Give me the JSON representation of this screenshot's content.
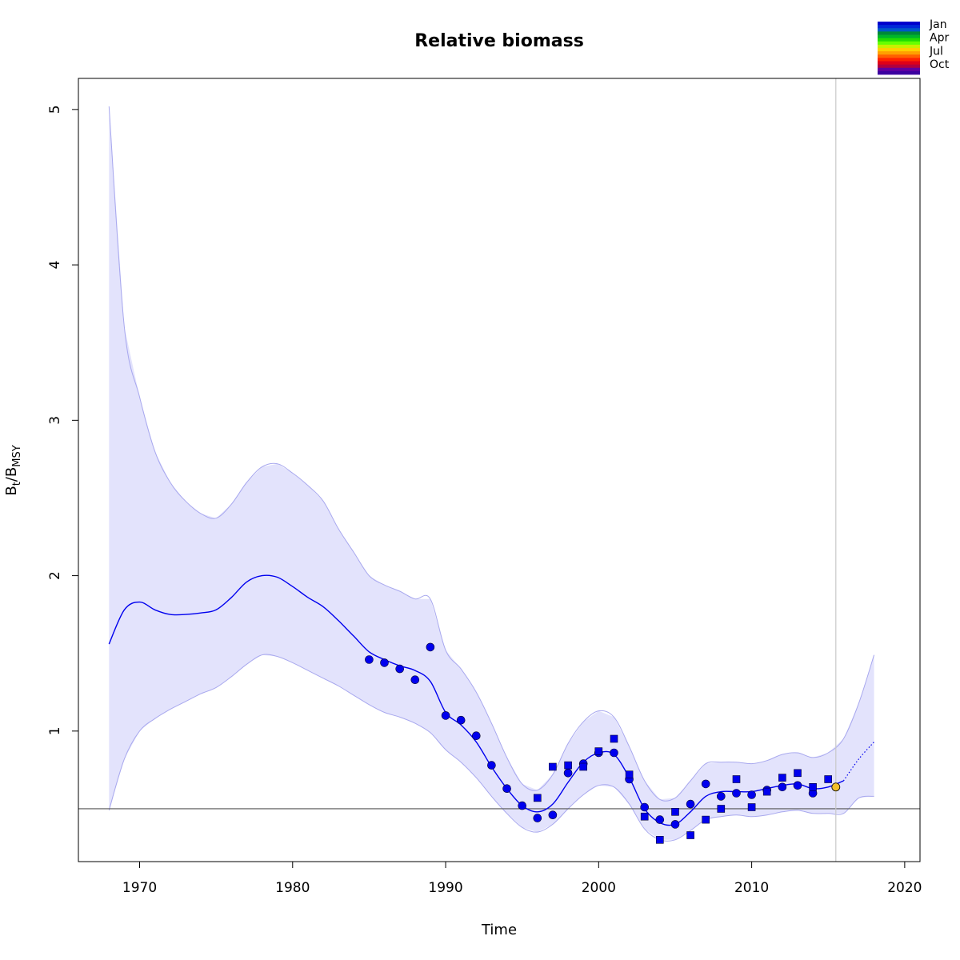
{
  "chart_data": {
    "type": "line",
    "title": "Relative biomass",
    "xlabel": "Time",
    "ylabel_main": "B",
    "ylabel_sub1": "t",
    "ylabel_sep": "/B",
    "ylabel_sub2": "MSY",
    "xlim": [
      1966,
      2021
    ],
    "ylim": [
      0.16,
      5.2
    ],
    "xticks": [
      1970,
      1980,
      1990,
      2000,
      2010,
      2020
    ],
    "yticks": [
      1,
      2,
      3,
      4,
      5
    ],
    "reference_line": 0.5,
    "vertical_line": 2015.5,
    "grid": false,
    "colors": {
      "estimate": "#0000ee",
      "band": "#e3e3fc",
      "band_edge": "#a8a8ee",
      "points": "#0000ee",
      "current": "#f2c02a"
    },
    "estimate": {
      "name": "",
      "x": [
        1968,
        1969,
        1970,
        1971,
        1972,
        1973,
        1974,
        1975,
        1976,
        1977,
        1978,
        1979,
        1980,
        1981,
        1982,
        1983,
        1984,
        1985,
        1986,
        1987,
        1988,
        1989,
        1990,
        1991,
        1992,
        1993,
        1994,
        1995,
        1996,
        1997,
        1998,
        1999,
        2000,
        2001,
        2002,
        2003,
        2004,
        2005,
        2006,
        2007,
        2008,
        2009,
        2010,
        2011,
        2012,
        2013,
        2014,
        2015,
        2016
      ],
      "y": [
        1.56,
        1.78,
        1.83,
        1.78,
        1.75,
        1.75,
        1.76,
        1.78,
        1.86,
        1.96,
        2.0,
        1.99,
        1.93,
        1.86,
        1.8,
        1.71,
        1.61,
        1.51,
        1.46,
        1.42,
        1.39,
        1.32,
        1.12,
        1.04,
        0.93,
        0.77,
        0.63,
        0.52,
        0.48,
        0.53,
        0.67,
        0.8,
        0.86,
        0.85,
        0.7,
        0.5,
        0.41,
        0.4,
        0.48,
        0.58,
        0.61,
        0.61,
        0.61,
        0.63,
        0.65,
        0.66,
        0.63,
        0.64,
        0.68
      ]
    },
    "prediction": {
      "x": [
        2016,
        2017,
        2018
      ],
      "y": [
        0.68,
        0.82,
        0.93
      ]
    },
    "ci_upper": {
      "x": [
        1968,
        1969,
        1970,
        1971,
        1972,
        1973,
        1974,
        1975,
        1976,
        1977,
        1978,
        1979,
        1980,
        1981,
        1982,
        1983,
        1984,
        1985,
        1986,
        1987,
        1988,
        1989,
        1990,
        1991,
        1992,
        1993,
        1994,
        1995,
        1996,
        1997,
        1998,
        1999,
        2000,
        2001,
        2002,
        2003,
        2004,
        2005,
        2006,
        2007,
        2008,
        2009,
        2010,
        2011,
        2012,
        2013,
        2014,
        2015,
        2016,
        2017,
        2018
      ],
      "y": [
        5.02,
        3.6,
        3.15,
        2.8,
        2.6,
        2.48,
        2.4,
        2.37,
        2.46,
        2.6,
        2.7,
        2.72,
        2.66,
        2.58,
        2.48,
        2.3,
        2.15,
        2.0,
        1.94,
        1.9,
        1.85,
        1.85,
        1.52,
        1.4,
        1.25,
        1.05,
        0.83,
        0.66,
        0.62,
        0.72,
        0.92,
        1.06,
        1.13,
        1.09,
        0.9,
        0.68,
        0.56,
        0.57,
        0.68,
        0.79,
        0.8,
        0.8,
        0.79,
        0.81,
        0.85,
        0.86,
        0.83,
        0.86,
        0.95,
        1.18,
        1.49
      ]
    },
    "ci_lower": {
      "x": [
        1968,
        1969,
        1970,
        1971,
        1972,
        1973,
        1974,
        1975,
        1976,
        1977,
        1978,
        1979,
        1980,
        1981,
        1982,
        1983,
        1984,
        1985,
        1986,
        1987,
        1988,
        1989,
        1990,
        1991,
        1992,
        1993,
        1994,
        1995,
        1996,
        1997,
        1998,
        1999,
        2000,
        2001,
        2002,
        2003,
        2004,
        2005,
        2006,
        2007,
        2008,
        2009,
        2010,
        2011,
        2012,
        2013,
        2014,
        2015,
        2016,
        2017,
        2018
      ],
      "y": [
        0.49,
        0.82,
        1.0,
        1.08,
        1.14,
        1.19,
        1.24,
        1.28,
        1.35,
        1.43,
        1.49,
        1.48,
        1.44,
        1.39,
        1.34,
        1.29,
        1.23,
        1.17,
        1.12,
        1.09,
        1.05,
        0.99,
        0.88,
        0.8,
        0.7,
        0.58,
        0.47,
        0.38,
        0.35,
        0.4,
        0.5,
        0.59,
        0.65,
        0.64,
        0.53,
        0.37,
        0.3,
        0.3,
        0.36,
        0.43,
        0.45,
        0.46,
        0.45,
        0.46,
        0.48,
        0.49,
        0.47,
        0.47,
        0.47,
        0.57,
        0.58
      ]
    },
    "index1": {
      "marker": "circle",
      "x": [
        1985,
        1986,
        1987,
        1988,
        1989,
        1990,
        1991,
        1992,
        1993,
        1994,
        1995,
        1996,
        1997,
        1998,
        1999,
        2000,
        2001,
        2002,
        2003,
        2004,
        2005,
        2006,
        2007,
        2008,
        2009,
        2010,
        2011,
        2012,
        2013,
        2014
      ],
      "y": [
        1.46,
        1.44,
        1.4,
        1.33,
        1.54,
        1.1,
        1.07,
        0.97,
        0.78,
        0.63,
        0.52,
        0.44,
        0.46,
        0.73,
        0.79,
        0.86,
        0.86,
        0.69,
        0.51,
        0.43,
        0.4,
        0.53,
        0.66,
        0.58,
        0.6,
        0.59,
        0.62,
        0.64,
        0.65,
        0.6
      ]
    },
    "index2": {
      "marker": "square",
      "x": [
        1996,
        1997,
        1998,
        1999,
        2000,
        2001,
        2002,
        2003,
        2004,
        2005,
        2006,
        2007,
        2008,
        2009,
        2010,
        2011,
        2012,
        2013,
        2014,
        2015
      ],
      "y": [
        0.57,
        0.77,
        0.78,
        0.77,
        0.87,
        0.95,
        0.72,
        0.45,
        0.3,
        0.48,
        0.33,
        0.43,
        0.5,
        0.69,
        0.51,
        0.61,
        0.7,
        0.73,
        0.64,
        0.69
      ]
    },
    "current_point": {
      "x": 2015.5,
      "y": 0.64
    },
    "legend": {
      "position": "top-right",
      "labels": [
        "Jan",
        "Apr",
        "Jul",
        "Oct"
      ],
      "colors": [
        "#0000cc",
        "#0028d8",
        "#0058c8",
        "#00883a",
        "#00b62a",
        "#22dd00",
        "#66ff00",
        "#c8f000",
        "#ffd000",
        "#ffa000",
        "#ff6000",
        "#ff2200",
        "#e00018",
        "#b00040",
        "#6000a0",
        "#3c00a0"
      ]
    }
  }
}
